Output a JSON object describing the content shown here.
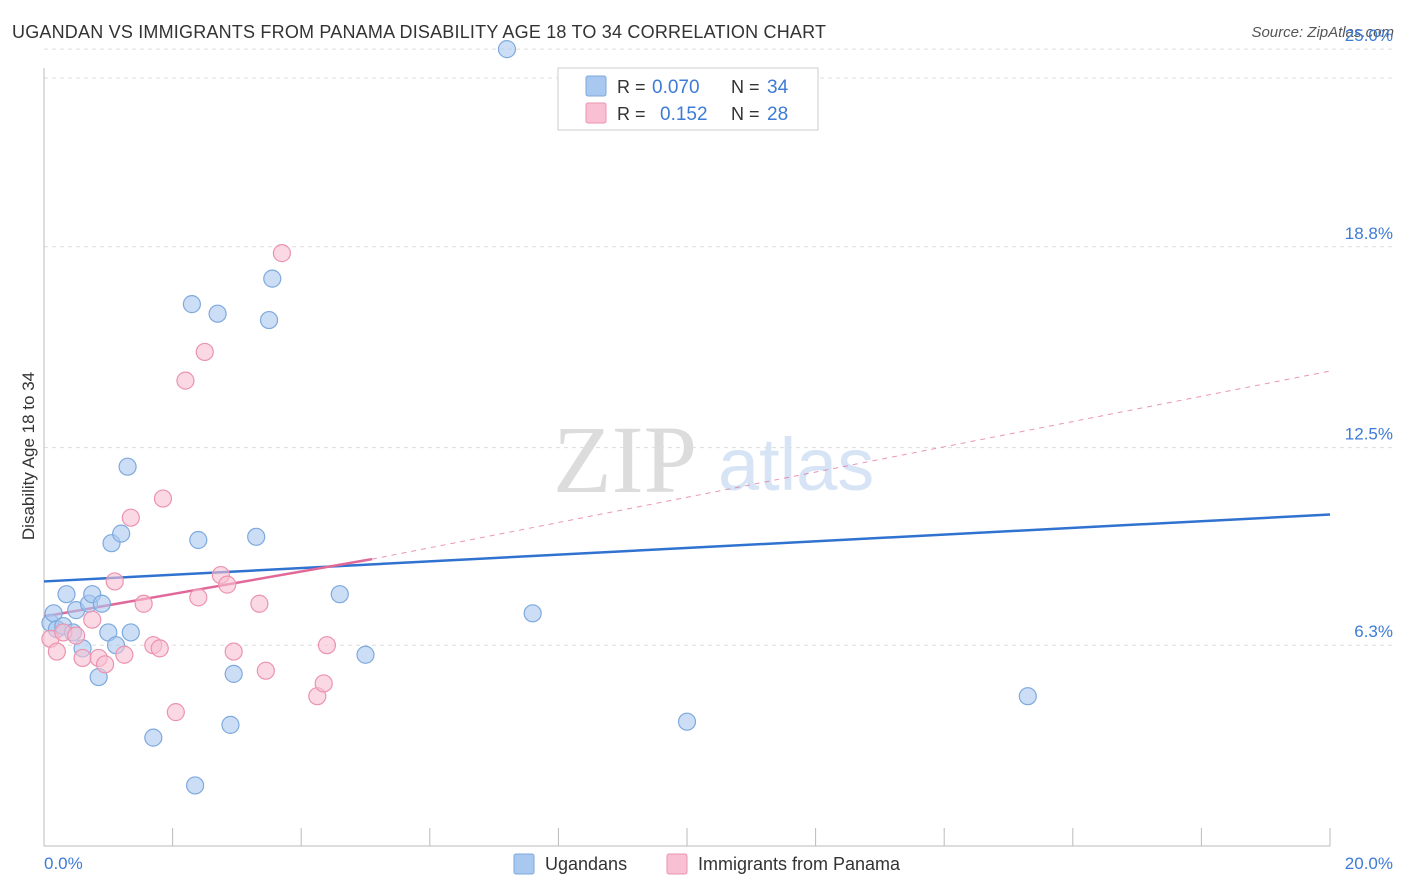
{
  "header": {
    "title": "UGANDAN VS IMMIGRANTS FROM PANAMA DISABILITY AGE 18 TO 34 CORRELATION CHART",
    "source": "Source: ZipAtlas.com"
  },
  "watermark": {
    "zip": "ZIP",
    "atlas": "atlas"
  },
  "legend_box": {
    "rows": [
      {
        "r_label": "R =",
        "r_value": "0.070",
        "n_label": "N =",
        "n_value": "34"
      },
      {
        "r_label": "R =",
        "r_value": "0.152",
        "n_label": "N =",
        "n_value": "28"
      }
    ]
  },
  "colors": {
    "blue_fill": "#a9c8f0",
    "blue_stroke": "#7ea9dd",
    "blue_line": "#2f72d0",
    "pink_fill": "#f8c0d2",
    "pink_stroke": "#eb93ae",
    "pink_line": "#e0699a",
    "value_text": "#3d7bd6",
    "grid": "#dddddd"
  },
  "chart_data": {
    "type": "scatter",
    "title": "UGANDAN VS IMMIGRANTS FROM PANAMA DISABILITY AGE 18 TO 34 CORRELATION CHART",
    "xlabel": "",
    "ylabel": "Disability Age 18 to 34",
    "xlim": [
      0,
      20
    ],
    "ylim": [
      0,
      25.6
    ],
    "x_tick_labels": [
      "0.0%",
      "20.0%"
    ],
    "y_ticks": [
      6.3,
      12.5,
      18.8,
      25.0
    ],
    "y_tick_labels": [
      "6.3%",
      "12.5%",
      "18.8%",
      "25.0%"
    ],
    "grid": "horizontal dashed",
    "legend_position": "bottom-center",
    "series": [
      {
        "name": "Ugandans",
        "color": "#a9c8f0",
        "r": "0.070",
        "n": "34",
        "trend": {
          "x": [
            0,
            20
          ],
          "y": [
            8.3,
            10.4
          ]
        },
        "points": [
          [
            0.1,
            7.0
          ],
          [
            0.15,
            7.3
          ],
          [
            0.2,
            6.8
          ],
          [
            0.3,
            6.9
          ],
          [
            0.35,
            7.9
          ],
          [
            0.45,
            6.7
          ],
          [
            0.5,
            7.4
          ],
          [
            0.6,
            6.2
          ],
          [
            0.7,
            7.6
          ],
          [
            0.75,
            7.9
          ],
          [
            0.85,
            5.3
          ],
          [
            0.9,
            7.6
          ],
          [
            1.0,
            6.7
          ],
          [
            1.05,
            9.5
          ],
          [
            1.12,
            6.3
          ],
          [
            1.2,
            9.8
          ],
          [
            1.3,
            11.9
          ],
          [
            1.35,
            6.7
          ],
          [
            1.7,
            3.4
          ],
          [
            2.3,
            17.0
          ],
          [
            2.35,
            1.9
          ],
          [
            2.4,
            9.6
          ],
          [
            2.7,
            16.7
          ],
          [
            2.9,
            3.8
          ],
          [
            2.95,
            5.4
          ],
          [
            3.3,
            9.7
          ],
          [
            3.5,
            16.5
          ],
          [
            3.55,
            17.8
          ],
          [
            4.6,
            7.9
          ],
          [
            5.0,
            6.0
          ],
          [
            7.2,
            25.0
          ],
          [
            7.6,
            7.3
          ],
          [
            10.0,
            3.9
          ],
          [
            15.3,
            4.7
          ]
        ]
      },
      {
        "name": "Immigrants from Panama",
        "color": "#f8c0d2",
        "r": "0.152",
        "n": "28",
        "trend": {
          "x": [
            0,
            5.1
          ],
          "y": [
            7.2,
            9.0
          ],
          "dashed_x": [
            5.1,
            20
          ],
          "dashed_y": [
            9.0,
            14.9
          ]
        },
        "points": [
          [
            0.1,
            6.5
          ],
          [
            0.2,
            6.1
          ],
          [
            0.3,
            6.7
          ],
          [
            0.5,
            6.6
          ],
          [
            0.6,
            5.9
          ],
          [
            0.75,
            7.1
          ],
          [
            0.85,
            5.9
          ],
          [
            0.95,
            5.7
          ],
          [
            1.1,
            8.3
          ],
          [
            1.25,
            6.0
          ],
          [
            1.35,
            10.3
          ],
          [
            1.55,
            7.6
          ],
          [
            1.7,
            6.3
          ],
          [
            1.8,
            6.2
          ],
          [
            1.85,
            10.9
          ],
          [
            2.05,
            4.2
          ],
          [
            2.2,
            14.6
          ],
          [
            2.4,
            7.8
          ],
          [
            2.5,
            15.5
          ],
          [
            2.75,
            8.5
          ],
          [
            2.85,
            8.2
          ],
          [
            2.95,
            6.1
          ],
          [
            3.35,
            7.6
          ],
          [
            3.45,
            5.5
          ],
          [
            3.7,
            18.6
          ],
          [
            4.25,
            4.7
          ],
          [
            4.35,
            5.1
          ],
          [
            4.4,
            6.3
          ]
        ]
      }
    ]
  }
}
